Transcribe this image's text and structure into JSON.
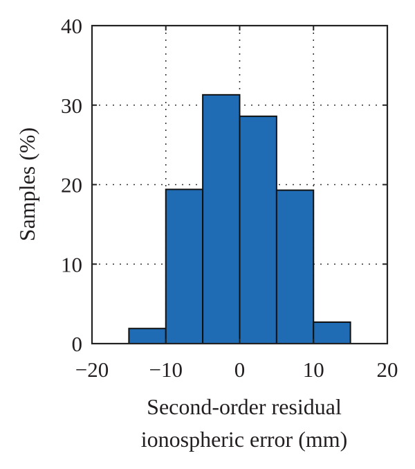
{
  "chart_data": {
    "type": "bar",
    "title": "",
    "xlabel_lines": [
      "Second-order residual",
      "ionospheric error (mm)"
    ],
    "ylabel": "Samples (%)",
    "xlim": [
      -20,
      20
    ],
    "ylim": [
      0,
      40
    ],
    "xticks": [
      -20,
      -10,
      0,
      10,
      20
    ],
    "xtick_labels": [
      "−20",
      "−10",
      "0",
      "10",
      "20"
    ],
    "yticks": [
      0,
      10,
      20,
      30,
      40
    ],
    "ytick_labels": [
      "0",
      "10",
      "20",
      "30",
      "40"
    ],
    "grid": true,
    "bar_color": "#1f6cb5",
    "bins": [
      {
        "start": -15,
        "end": -10,
        "value": 1.9
      },
      {
        "start": -10,
        "end": -5,
        "value": 19.4
      },
      {
        "start": -5,
        "end": 0,
        "value": 31.3
      },
      {
        "start": 0,
        "end": 5,
        "value": 28.6
      },
      {
        "start": 5,
        "end": 10,
        "value": 19.3
      },
      {
        "start": 10,
        "end": 15,
        "value": 2.7
      }
    ]
  }
}
